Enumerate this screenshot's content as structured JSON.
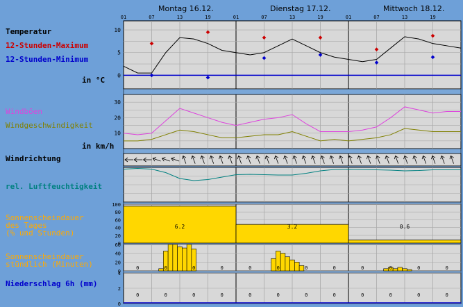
{
  "days": [
    "Montag 16.12.",
    "Dienstag 17.12.",
    "Mittwoch 18.12."
  ],
  "hour_ticks": [
    "01",
    "07",
    "13",
    "19",
    "01",
    "07",
    "13",
    "19",
    "01",
    "07",
    "13",
    "19"
  ],
  "labels": {
    "temperatur": "Temperatur",
    "max": "12-Stunden-Maximum",
    "min": "12-Stunden-Minimum",
    "temp_unit": "in °C",
    "windboeen": "Windböen",
    "windgeschw": "Windgeschwindigkeit",
    "wind_unit": "in km/h",
    "windrichtung": "Windrichtung",
    "feuchte": "rel. Luftfeuchtigkeit",
    "sonne_tag_1": "Sonnenscheindauer",
    "sonne_tag_2": "des Tages",
    "sonne_tag_3": "(% und Stunden)",
    "sonne_std_1": "Sonnenscheindauer",
    "sonne_std_2": "stündlich (Minuten)",
    "niederschlag": "Niederschlag 6h (mm)"
  },
  "colors": {
    "background": "#6ea0d8",
    "panel": "#d8d8d8",
    "max": "#cc0000",
    "min": "#0000cc",
    "gust": "#dd44dd",
    "wind": "#808000",
    "humidity": "#008080",
    "sun": "#ffd700",
    "sun_label": "#ffaa00",
    "precip_label": "#0000cc"
  },
  "chart_data": [
    {
      "type": "line",
      "name": "temperature",
      "ylim": [
        -3,
        12
      ],
      "yticks": [
        0,
        5,
        10
      ],
      "x_hours": [
        0,
        3,
        6,
        9,
        12,
        15,
        18,
        21,
        24,
        27,
        30,
        33,
        36,
        39,
        42,
        45,
        48,
        51,
        54,
        57,
        60,
        63,
        66,
        69,
        72
      ],
      "temp": [
        2,
        0.5,
        0.5,
        5,
        8.3,
        8,
        7,
        5.5,
        5,
        4.5,
        5,
        6.5,
        8,
        6.5,
        5,
        4,
        3.5,
        3,
        3.5,
        6,
        8.5,
        8,
        7,
        6.5,
        6
      ],
      "max_points": [
        {
          "x": 6,
          "y": 7
        },
        {
          "x": 18,
          "y": 9.5
        },
        {
          "x": 30,
          "y": 8.3
        },
        {
          "x": 42,
          "y": 8.3
        },
        {
          "x": 54,
          "y": 5.7
        },
        {
          "x": 66,
          "y": 8.7
        }
      ],
      "min_points": [
        {
          "x": 6,
          "y": 0
        },
        {
          "x": 18,
          "y": -0.5
        },
        {
          "x": 30,
          "y": 3.8
        },
        {
          "x": 42,
          "y": 4.5
        },
        {
          "x": 54,
          "y": 2.8
        },
        {
          "x": 66,
          "y": 4
        }
      ]
    },
    {
      "type": "line",
      "name": "wind",
      "ylim": [
        0,
        35
      ],
      "yticks": [
        10,
        20,
        30
      ],
      "x_hours": [
        0,
        3,
        6,
        9,
        12,
        15,
        18,
        21,
        24,
        27,
        30,
        33,
        36,
        39,
        42,
        45,
        48,
        51,
        54,
        57,
        60,
        63,
        66,
        69,
        72
      ],
      "gusts": [
        10,
        9,
        10,
        18,
        26,
        23,
        20,
        17,
        15,
        17,
        19,
        20,
        22,
        16,
        11,
        11,
        11,
        12,
        14,
        20,
        27,
        25,
        23,
        24,
        24
      ],
      "speed": [
        5,
        5,
        6,
        9,
        12,
        11,
        9,
        7,
        7,
        8,
        9,
        9,
        11,
        8,
        5,
        6,
        5,
        6,
        7,
        9,
        13,
        12,
        11,
        11,
        11
      ]
    },
    {
      "type": "line",
      "name": "humidity",
      "ylim": [
        0,
        100
      ],
      "x_hours": [
        0,
        3,
        6,
        9,
        12,
        15,
        18,
        21,
        24,
        27,
        30,
        33,
        36,
        39,
        42,
        45,
        48,
        51,
        54,
        57,
        60,
        63,
        66,
        69,
        72
      ],
      "values": [
        95,
        97,
        95,
        85,
        68,
        62,
        65,
        72,
        79,
        80,
        79,
        78,
        78,
        83,
        90,
        94,
        95,
        94,
        93,
        92,
        90,
        91,
        93,
        93,
        93
      ]
    },
    {
      "type": "bar",
      "name": "daily_sunshine",
      "ylim": [
        0,
        100
      ],
      "yticks": [
        0,
        20,
        40,
        60,
        80,
        100
      ],
      "percent": [
        95,
        48,
        8
      ],
      "hours": [
        "6.2",
        "3.2",
        "0.6"
      ]
    },
    {
      "type": "bar",
      "name": "hourly_sunshine",
      "ylim": [
        0,
        60
      ],
      "yticks": [
        0,
        20,
        40,
        60
      ],
      "x_hours": [
        8,
        9,
        10,
        11,
        12,
        13,
        14,
        15,
        32,
        33,
        34,
        35,
        36,
        37,
        38,
        56,
        57,
        58,
        59,
        60,
        61
      ],
      "minutes": [
        5,
        45,
        60,
        60,
        55,
        52,
        60,
        50,
        28,
        45,
        40,
        32,
        25,
        20,
        12,
        5,
        8,
        5,
        8,
        5,
        3
      ]
    },
    {
      "type": "bar",
      "name": "precipitation",
      "ylim": [
        0,
        4
      ],
      "yticks": [
        0,
        2,
        4
      ],
      "values": [
        "0",
        "0",
        "0",
        "0",
        "0",
        "0",
        "0",
        "0",
        "0",
        "0",
        "0",
        "0"
      ]
    }
  ]
}
